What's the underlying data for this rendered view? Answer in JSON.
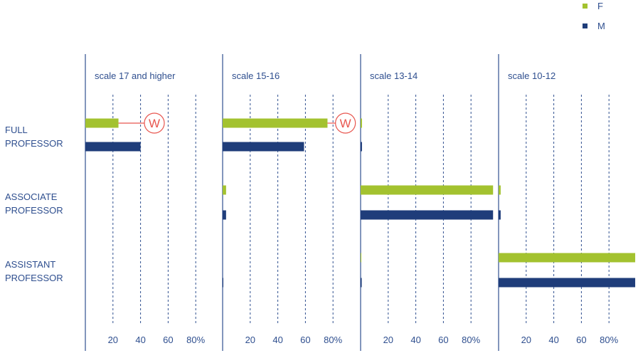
{
  "colors": {
    "F": "#a3c22f",
    "M": "#1f3d7a",
    "grid": "#2f4f8f",
    "text": "#2f4f8f",
    "annotation": "#e8564f"
  },
  "legend": [
    {
      "key": "F",
      "label": "F"
    },
    {
      "key": "M",
      "label": "M"
    }
  ],
  "row_labels": [
    {
      "line1": "FULL",
      "line2": "PROFESSOR"
    },
    {
      "line1": "ASSOCIATE",
      "line2": "PROFESSOR"
    },
    {
      "line1": "ASSISTANT",
      "line2": "PROFESSOR"
    }
  ],
  "chart_data": {
    "type": "bar",
    "orientation": "horizontal",
    "facets": [
      "scale 17 and higher",
      "scale 15-16",
      "scale 13-14",
      "scale 10-12"
    ],
    "categories": [
      "FULL PROFESSOR",
      "ASSOCIATE PROFESSOR",
      "ASSISTANT PROFESSOR"
    ],
    "x_ticks": [
      "20",
      "40",
      "60",
      "80%"
    ],
    "x_tick_values": [
      20,
      40,
      60,
      80
    ],
    "xlim": [
      0,
      100
    ],
    "grid": true,
    "legend_position": "top-right",
    "series": [
      {
        "name": "F",
        "values": [
          [
            24,
            0,
            0
          ],
          [
            76,
            2.5,
            0
          ],
          [
            1,
            96,
            0.5
          ],
          [
            0,
            1.5,
            99
          ]
        ]
      },
      {
        "name": "M",
        "values": [
          [
            40,
            0,
            0
          ],
          [
            59,
            2.5,
            0.5
          ],
          [
            1,
            96,
            0.8
          ],
          [
            0,
            1.5,
            99
          ]
        ]
      }
    ],
    "annotations": [
      {
        "facet": 0,
        "category": 0,
        "text": "W",
        "value": 50
      },
      {
        "facet": 1,
        "category": 0,
        "text": "W",
        "value": 89
      }
    ]
  }
}
